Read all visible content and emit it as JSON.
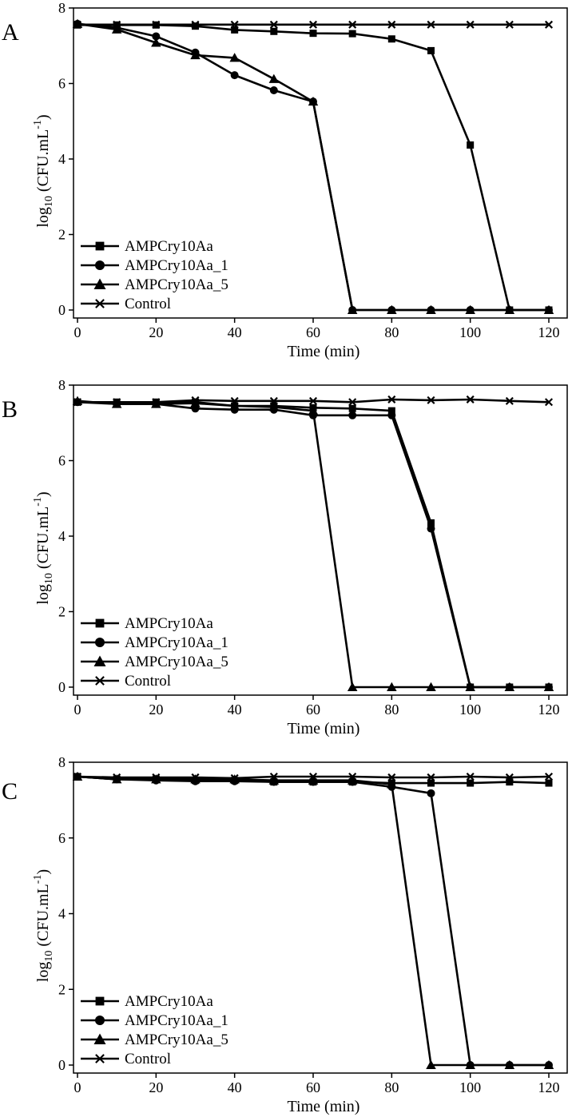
{
  "figure": {
    "colors": {
      "ink": "#000000",
      "background": "#ffffff"
    }
  },
  "chart_data": [
    {
      "panel": "A",
      "type": "line",
      "xlabel": "Time (min)",
      "ylabel": "log10 (CFU.mL-1)",
      "ylabel_parts": {
        "base": "log",
        "sub": "10",
        "unit": " (CFU.mL",
        "sup": "-1",
        "close": ")"
      },
      "xlim": [
        0,
        120
      ],
      "ylim": [
        0,
        8
      ],
      "xticks": [
        0,
        20,
        40,
        60,
        80,
        100,
        120
      ],
      "yticks": [
        0,
        2,
        4,
        6,
        8
      ],
      "grid": false,
      "legend_position": "bottom-left",
      "series": [
        {
          "name": "AMPCry10Aa",
          "marker": "square",
          "x": [
            0,
            10,
            20,
            30,
            40,
            50,
            60,
            70,
            80,
            90,
            100,
            110,
            120
          ],
          "y": [
            7.55,
            7.55,
            7.55,
            7.52,
            7.42,
            7.38,
            7.33,
            7.32,
            7.18,
            6.87,
            4.37,
            0,
            0
          ]
        },
        {
          "name": "AMPCry10Aa_1",
          "marker": "circle",
          "x": [
            0,
            10,
            20,
            30,
            40,
            50,
            60,
            70,
            80,
            90,
            100,
            110,
            120
          ],
          "y": [
            7.58,
            7.48,
            7.25,
            6.82,
            6.22,
            5.82,
            5.52,
            0,
            0,
            0,
            0,
            0,
            0
          ]
        },
        {
          "name": "AMPCry10Aa_5",
          "marker": "triangle",
          "x": [
            0,
            10,
            20,
            30,
            40,
            50,
            60,
            70,
            80,
            90,
            100,
            110,
            120
          ],
          "y": [
            7.58,
            7.43,
            7.08,
            6.75,
            6.68,
            6.12,
            5.52,
            0,
            0,
            0,
            0,
            0,
            0
          ]
        },
        {
          "name": "Control",
          "marker": "cross",
          "x": [
            0,
            10,
            20,
            30,
            40,
            50,
            60,
            70,
            80,
            90,
            100,
            110,
            120
          ],
          "y": [
            7.56,
            7.56,
            7.56,
            7.56,
            7.56,
            7.56,
            7.56,
            7.56,
            7.56,
            7.56,
            7.56,
            7.56,
            7.56
          ]
        }
      ]
    },
    {
      "panel": "B",
      "type": "line",
      "xlabel": "Time (min)",
      "ylabel": "log10 (CFU.mL-1)",
      "ylabel_parts": {
        "base": "log",
        "sub": "10",
        "unit": " (CFU.mL",
        "sup": "-1",
        "close": ")"
      },
      "xlim": [
        0,
        120
      ],
      "ylim": [
        0,
        8
      ],
      "xticks": [
        0,
        20,
        40,
        60,
        80,
        100,
        120
      ],
      "yticks": [
        0,
        2,
        4,
        6,
        8
      ],
      "grid": false,
      "legend_position": "bottom-left",
      "series": [
        {
          "name": "AMPCry10Aa",
          "marker": "square",
          "x": [
            0,
            10,
            20,
            30,
            40,
            50,
            60,
            70,
            80,
            90,
            100,
            110,
            120
          ],
          "y": [
            7.55,
            7.55,
            7.55,
            7.55,
            7.45,
            7.45,
            7.4,
            7.38,
            7.32,
            4.35,
            0,
            0,
            0
          ]
        },
        {
          "name": "AMPCry10Aa_1",
          "marker": "circle",
          "x": [
            0,
            10,
            20,
            30,
            40,
            50,
            60,
            70,
            80,
            90,
            100,
            110,
            120
          ],
          "y": [
            7.55,
            7.5,
            7.5,
            7.38,
            7.35,
            7.35,
            7.2,
            7.2,
            7.2,
            4.2,
            0,
            0,
            0
          ]
        },
        {
          "name": "AMPCry10Aa_5",
          "marker": "triangle",
          "x": [
            0,
            10,
            20,
            30,
            40,
            50,
            60,
            70,
            80,
            90,
            100,
            110,
            120
          ],
          "y": [
            7.58,
            7.5,
            7.5,
            7.52,
            7.45,
            7.42,
            7.32,
            0,
            0,
            0,
            0,
            0,
            0
          ]
        },
        {
          "name": "Control",
          "marker": "cross",
          "x": [
            0,
            10,
            20,
            30,
            40,
            50,
            60,
            70,
            80,
            90,
            100,
            110,
            120
          ],
          "y": [
            7.55,
            7.55,
            7.55,
            7.6,
            7.58,
            7.58,
            7.58,
            7.55,
            7.62,
            7.6,
            7.62,
            7.58,
            7.55
          ]
        }
      ]
    },
    {
      "panel": "C",
      "type": "line",
      "xlabel": "Time (min)",
      "ylabel": "log10 (CFU.mL-1)",
      "ylabel_parts": {
        "base": "log",
        "sub": "10",
        "unit": " (CFU.mL",
        "sup": "-1",
        "close": ")"
      },
      "xlim": [
        0,
        120
      ],
      "ylim": [
        0,
        8
      ],
      "xticks": [
        0,
        20,
        40,
        60,
        80,
        100,
        120
      ],
      "yticks": [
        0,
        2,
        4,
        6,
        8
      ],
      "grid": false,
      "legend_position": "bottom-left",
      "series": [
        {
          "name": "AMPCry10Aa",
          "marker": "square",
          "x": [
            0,
            10,
            20,
            30,
            40,
            50,
            60,
            70,
            80,
            90,
            100,
            110,
            120
          ],
          "y": [
            7.62,
            7.55,
            7.55,
            7.52,
            7.52,
            7.48,
            7.48,
            7.48,
            7.45,
            7.45,
            7.45,
            7.48,
            7.45
          ]
        },
        {
          "name": "AMPCry10Aa_1",
          "marker": "circle",
          "x": [
            0,
            10,
            20,
            30,
            40,
            50,
            60,
            70,
            80,
            90,
            100,
            110,
            120
          ],
          "y": [
            7.62,
            7.55,
            7.52,
            7.5,
            7.5,
            7.48,
            7.48,
            7.48,
            7.35,
            7.18,
            0,
            0,
            0
          ]
        },
        {
          "name": "AMPCry10Aa_5",
          "marker": "triangle",
          "x": [
            0,
            10,
            20,
            30,
            40,
            50,
            60,
            70,
            80,
            90,
            100,
            110,
            120
          ],
          "y": [
            7.62,
            7.55,
            7.55,
            7.55,
            7.55,
            7.52,
            7.52,
            7.52,
            7.42,
            0,
            0,
            0,
            0
          ]
        },
        {
          "name": "Control",
          "marker": "cross",
          "x": [
            0,
            10,
            20,
            30,
            40,
            50,
            60,
            70,
            80,
            90,
            100,
            110,
            120
          ],
          "y": [
            7.62,
            7.6,
            7.6,
            7.6,
            7.58,
            7.62,
            7.62,
            7.62,
            7.6,
            7.6,
            7.62,
            7.6,
            7.62
          ]
        }
      ]
    }
  ]
}
